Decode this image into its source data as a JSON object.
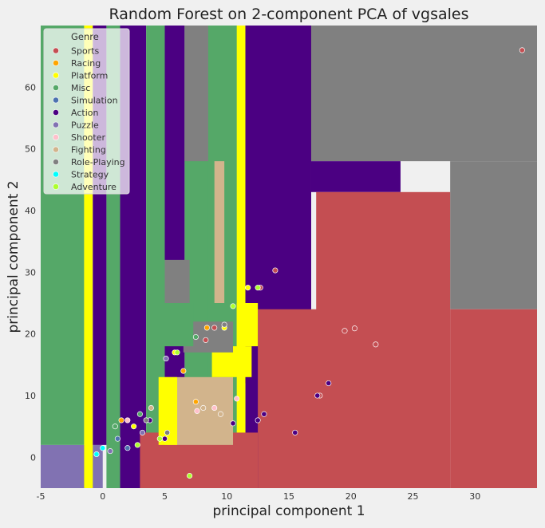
{
  "chart_data": {
    "type": "scatter",
    "title": "Random Forest on 2-component PCA of vgsales",
    "xlabel": "principal component 1",
    "ylabel": "principal component 2",
    "xlim": [
      -5,
      35
    ],
    "ylim": [
      -5,
      70
    ],
    "xticks": [
      -5,
      0,
      5,
      10,
      15,
      20,
      25,
      30
    ],
    "yticks": [
      0,
      10,
      20,
      30,
      40,
      50,
      60
    ],
    "grid": false,
    "legend": {
      "title": "Genre",
      "placement": "top-left",
      "entries": [
        {
          "label": "Sports",
          "color": "#c44e52"
        },
        {
          "label": "Racing",
          "color": "#ffa500"
        },
        {
          "label": "Platform",
          "color": "#ffff00"
        },
        {
          "label": "Misc",
          "color": "#55a868"
        },
        {
          "label": "Simulation",
          "color": "#4c72b0"
        },
        {
          "label": "Action",
          "color": "#4b0082"
        },
        {
          "label": "Puzzle",
          "color": "#8172b2"
        },
        {
          "label": "Shooter",
          "color": "#ffc0cb"
        },
        {
          "label": "Fighting",
          "color": "#d2b48c"
        },
        {
          "label": "Role-Playing",
          "color": "#808080"
        },
        {
          "label": "Strategy",
          "color": "#00ffff"
        },
        {
          "label": "Adventure",
          "color": "#adff2f"
        }
      ]
    },
    "regions": [
      {
        "genre": "Puzzle",
        "x": [
          -5,
          0
        ],
        "y": [
          -5,
          2
        ]
      },
      {
        "genre": "Misc",
        "x": [
          -5,
          -1.5
        ],
        "y": [
          2,
          70
        ]
      },
      {
        "genre": "Platform",
        "x": [
          -1.5,
          -0.8
        ],
        "y": [
          -5,
          70
        ]
      },
      {
        "genre": "Action",
        "x": [
          -0.8,
          0.3
        ],
        "y": [
          2,
          70
        ]
      },
      {
        "genre": "Misc",
        "x": [
          0.3,
          1.4
        ],
        "y": [
          -5,
          70
        ]
      },
      {
        "genre": "Action",
        "x": [
          1.4,
          3.5
        ],
        "y": [
          -5,
          70
        ]
      },
      {
        "genre": "Misc",
        "x": [
          3.5,
          5.0
        ],
        "y": [
          -5,
          70
        ]
      },
      {
        "genre": "Action",
        "x": [
          5.0,
          6.6
        ],
        "y": [
          -5,
          70
        ]
      },
      {
        "genre": "Misc",
        "x": [
          6.6,
          9.6
        ],
        "y": [
          -5,
          70
        ]
      },
      {
        "genre": "Role-Playing",
        "x": [
          6.6,
          10.2
        ],
        "y": [
          48,
          70
        ]
      },
      {
        "genre": "Action",
        "x": [
          9.6,
          11.8
        ],
        "y": [
          12,
          70
        ]
      },
      {
        "genre": "Misc",
        "x": [
          8.5,
          11.0
        ],
        "y": [
          -5,
          70
        ]
      },
      {
        "genre": "Platform",
        "x": [
          10.8,
          11.5
        ],
        "y": [
          -5,
          70
        ]
      },
      {
        "genre": "Action",
        "x": [
          11.5,
          16.8
        ],
        "y": [
          -5,
          70
        ]
      },
      {
        "genre": "Role-Playing",
        "x": [
          16.8,
          35
        ],
        "y": [
          48,
          70
        ]
      },
      {
        "genre": "Action",
        "x": [
          16.8,
          24.0
        ],
        "y": [
          43,
          48
        ]
      },
      {
        "genre": "Role-Playing",
        "x": [
          28.0,
          35
        ],
        "y": [
          24,
          48
        ]
      },
      {
        "genre": "Sports",
        "x": [
          17.2,
          28.0
        ],
        "y": [
          -5,
          43
        ]
      },
      {
        "genre": "Sports",
        "x": [
          12.5,
          17.5
        ],
        "y": [
          -5,
          24
        ]
      },
      {
        "genre": "Sports",
        "x": [
          28.0,
          35
        ],
        "y": [
          -5,
          24
        ]
      },
      {
        "genre": "Sports",
        "x": [
          3.0,
          12.5
        ],
        "y": [
          -5,
          4
        ]
      },
      {
        "genre": "Fighting",
        "x": [
          5.0,
          10.5
        ],
        "y": [
          2,
          13
        ]
      },
      {
        "genre": "Platform",
        "x": [
          4.5,
          6.0
        ],
        "y": [
          2,
          13
        ]
      },
      {
        "genre": "Platform",
        "x": [
          8.8,
          12.0
        ],
        "y": [
          13,
          18
        ]
      },
      {
        "genre": "Platform",
        "x": [
          10.8,
          12.5
        ],
        "y": [
          18,
          25
        ]
      },
      {
        "genre": "Role-Playing",
        "x": [
          6.5,
          10.5
        ],
        "y": [
          17,
          22
        ]
      },
      {
        "genre": "Role-Playing",
        "x": [
          5.0,
          7.0
        ],
        "y": [
          25,
          32
        ]
      },
      {
        "genre": "Fighting",
        "x": [
          9.0,
          9.8
        ],
        "y": [
          25,
          48
        ]
      },
      {
        "genre": "Misc",
        "x": [
          5.0,
          7.3
        ],
        "y": [
          18,
          25
        ]
      }
    ],
    "series": [
      {
        "name": "Sports",
        "points": [
          [
            33.8,
            66
          ],
          [
            13.9,
            30.3
          ],
          [
            12.7,
            27.5
          ],
          [
            19.5,
            20.5
          ],
          [
            20.3,
            20.9
          ],
          [
            22.0,
            18.3
          ],
          [
            17.5,
            10
          ],
          [
            9.0,
            21
          ],
          [
            8.3,
            19
          ]
        ]
      },
      {
        "name": "Racing",
        "points": [
          [
            8.4,
            21
          ],
          [
            6.5,
            14
          ],
          [
            7.5,
            9
          ],
          [
            1.5,
            6
          ]
        ]
      },
      {
        "name": "Platform",
        "points": [
          [
            11.7,
            27.5
          ],
          [
            9.8,
            21
          ],
          [
            5.8,
            17
          ],
          [
            2.5,
            5
          ]
        ]
      },
      {
        "name": "Misc",
        "points": [
          [
            7.5,
            19.5
          ],
          [
            3.0,
            7
          ],
          [
            1.0,
            5
          ]
        ]
      },
      {
        "name": "Simulation",
        "points": [
          [
            1.2,
            3
          ],
          [
            2.0,
            1.5
          ]
        ]
      },
      {
        "name": "Action",
        "points": [
          [
            18.2,
            12
          ],
          [
            17.3,
            10
          ],
          [
            15.5,
            4
          ],
          [
            13.0,
            7
          ],
          [
            12.5,
            6
          ],
          [
            10.5,
            5.5
          ],
          [
            3.8,
            6
          ],
          [
            5.0,
            3
          ]
        ]
      },
      {
        "name": "Puzzle",
        "points": [
          [
            5.1,
            16
          ],
          [
            3.2,
            4
          ],
          [
            0.6,
            1
          ]
        ]
      },
      {
        "name": "Shooter",
        "points": [
          [
            10.8,
            9.5
          ],
          [
            7.6,
            7.5
          ],
          [
            9.0,
            8
          ],
          [
            2.0,
            6
          ]
        ]
      },
      {
        "name": "Fighting",
        "points": [
          [
            3.9,
            8
          ],
          [
            8.1,
            8
          ],
          [
            9.5,
            7
          ]
        ]
      },
      {
        "name": "Role-Playing",
        "points": [
          [
            9.8,
            21.5
          ],
          [
            3.5,
            6
          ],
          [
            5.2,
            4
          ]
        ]
      },
      {
        "name": "Strategy",
        "points": [
          [
            -0.5,
            0.5
          ],
          [
            0.0,
            1.5
          ]
        ]
      },
      {
        "name": "Adventure",
        "points": [
          [
            6.0,
            17
          ],
          [
            12.5,
            27.5
          ],
          [
            10.5,
            24.5
          ],
          [
            7.0,
            -3
          ],
          [
            2.8,
            2
          ],
          [
            4.6,
            3
          ]
        ]
      }
    ]
  }
}
